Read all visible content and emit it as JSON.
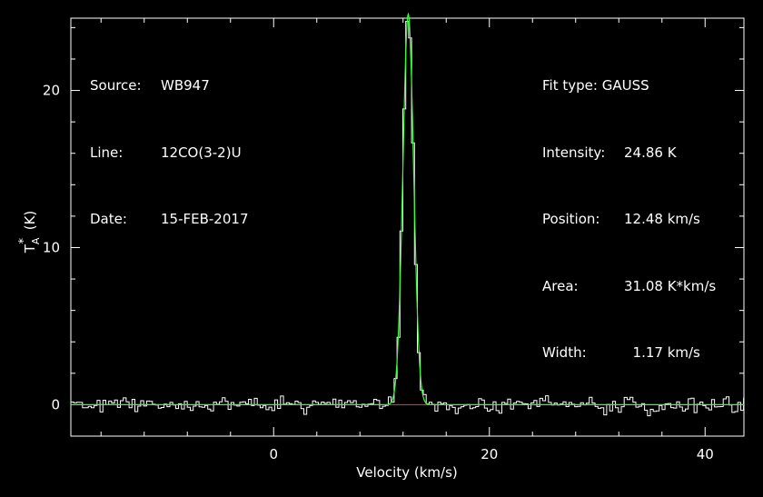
{
  "header_left": {
    "source_label": "Source:",
    "source_value": "WB947",
    "line_label": "Line:",
    "line_value": "12CO(3-2)U",
    "date_label": "Date:",
    "date_value": "15-FEB-2017"
  },
  "header_right": {
    "fit_label": "Fit type:",
    "fit_value": "GAUSS",
    "intensity_label": "Intensity:",
    "intensity_value": "24.86 K",
    "position_label": "Position:",
    "position_value": "12.48 km/s",
    "area_label": "Area:",
    "area_value": "31.08 K*km/s",
    "width_label": "Width:",
    "width_value": "  1.17 km/s"
  },
  "chart_data": {
    "type": "line",
    "xlabel": "Velocity (km/s)",
    "ylabel": "T_A^* (K)",
    "xlim": [
      -18.8,
      43.6
    ],
    "ylim": [
      -2,
      24.6
    ],
    "xticks": [
      0,
      20,
      40
    ],
    "yticks": [
      0,
      10,
      20
    ],
    "grid": false,
    "colors": {
      "spectrum": "#ffffff",
      "fit": "#33ff33",
      "baseline": "#ff2020",
      "axes": "#ffffff"
    },
    "fit": {
      "amplitude_K": 24.86,
      "center_kms": 12.48,
      "fwhm_kms": 1.17
    },
    "baseline": {
      "x_start": 10.5,
      "x_end": 14.5,
      "y": 0
    },
    "noise_rms_K": 0.25,
    "spectrum_resolution_kms": 0.27
  }
}
